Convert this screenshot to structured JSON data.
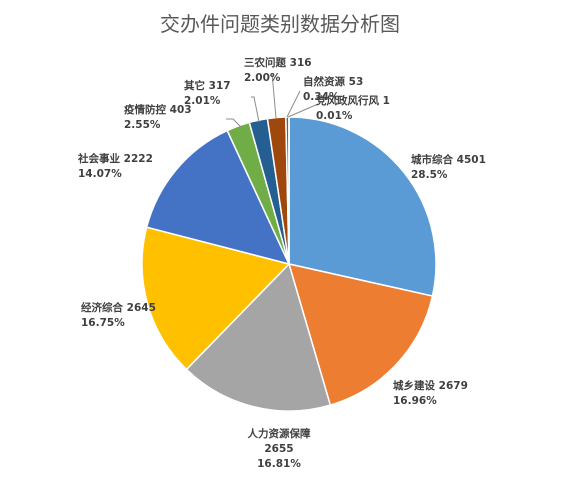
{
  "chart_data": {
    "type": "pie",
    "title": "交办件问题类别数据分析图",
    "legend": "none",
    "slices": [
      {
        "name": "城市综合",
        "value": 4501,
        "percent_label": "28.5%",
        "color": "#5b9bd5"
      },
      {
        "name": "城乡建设",
        "value": 2679,
        "percent_label": "16.96%",
        "color": "#ed7d31"
      },
      {
        "name": "人力资源保障",
        "value": 2655,
        "percent_label": "16.81%",
        "color": "#a5a5a5"
      },
      {
        "name": "经济综合",
        "value": 2645,
        "percent_label": "16.75%",
        "color": "#ffc000"
      },
      {
        "name": "社会事业",
        "value": 2222,
        "percent_label": "14.07%",
        "color": "#4472c4"
      },
      {
        "name": "疫情防控",
        "value": 403,
        "percent_label": "2.55%",
        "color": "#70ad47"
      },
      {
        "name": "其它",
        "value": 317,
        "percent_label": "2.01%",
        "color": "#255e91"
      },
      {
        "name": "三农问题",
        "value": 316,
        "percent_label": "2.00%",
        "color": "#9e480e"
      },
      {
        "name": "自然资源",
        "value": 53,
        "percent_label": "0.34%",
        "color": "#636363"
      },
      {
        "name": "党风政风行风",
        "value": 1,
        "percent_label": "0.01%",
        "color": "#997300"
      }
    ]
  }
}
